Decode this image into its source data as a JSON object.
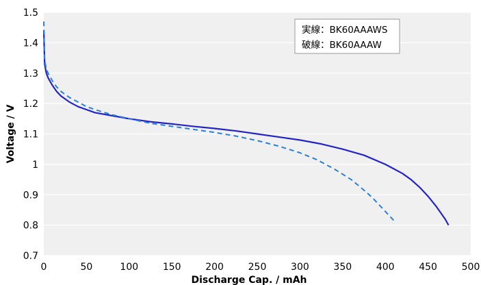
{
  "chart_data": {
    "type": "line",
    "xlabel": "Discharge Cap. / mAh",
    "ylabel": "Voltage / V",
    "xlim": [
      0,
      500
    ],
    "ylim": [
      0.7,
      1.5
    ],
    "x_ticks": [
      0,
      50,
      100,
      150,
      200,
      250,
      300,
      350,
      400,
      450,
      500
    ],
    "y_ticks": [
      0.7,
      0.8,
      0.9,
      1,
      1.1,
      1.2,
      1.3,
      1.4,
      1.5
    ],
    "y_tick_labels": [
      "0.7",
      "0.8",
      "0.9",
      "1",
      "1.1",
      "1.2",
      "1.3",
      "1.4",
      "1.5"
    ],
    "grid": "horizontal",
    "plot_background": "#f0f0f0",
    "legend": {
      "placement": "top-right",
      "entries": [
        "実線：BK60AAAWS",
        "破線：BK60AAAW"
      ]
    },
    "series": [
      {
        "style": "solid",
        "color": "#2323c8",
        "x": [
          0,
          1,
          3,
          5,
          10,
          15,
          20,
          30,
          40,
          50,
          60,
          80,
          100,
          125,
          150,
          175,
          200,
          225,
          250,
          275,
          300,
          325,
          350,
          375,
          400,
          410,
          420,
          430,
          440,
          450,
          460,
          470,
          474
        ],
        "y": [
          1.44,
          1.33,
          1.3,
          1.285,
          1.26,
          1.24,
          1.225,
          1.205,
          1.19,
          1.18,
          1.17,
          1.16,
          1.15,
          1.14,
          1.133,
          1.125,
          1.118,
          1.11,
          1.1,
          1.09,
          1.08,
          1.067,
          1.05,
          1.03,
          1.0,
          0.985,
          0.97,
          0.95,
          0.925,
          0.895,
          0.86,
          0.82,
          0.8
        ]
      },
      {
        "style": "dashed",
        "color": "#2a7fd6",
        "x": [
          0,
          1,
          3,
          5,
          10,
          15,
          20,
          30,
          40,
          50,
          60,
          80,
          100,
          125,
          150,
          175,
          200,
          225,
          250,
          275,
          300,
          320,
          340,
          360,
          375,
          385,
          395,
          400,
          405,
          410,
          413
        ],
        "y": [
          1.47,
          1.34,
          1.315,
          1.3,
          1.275,
          1.255,
          1.24,
          1.22,
          1.205,
          1.19,
          1.18,
          1.163,
          1.15,
          1.135,
          1.125,
          1.115,
          1.105,
          1.093,
          1.078,
          1.06,
          1.038,
          1.015,
          0.985,
          0.95,
          0.915,
          0.89,
          0.86,
          0.845,
          0.83,
          0.815,
          0.81
        ]
      }
    ]
  }
}
